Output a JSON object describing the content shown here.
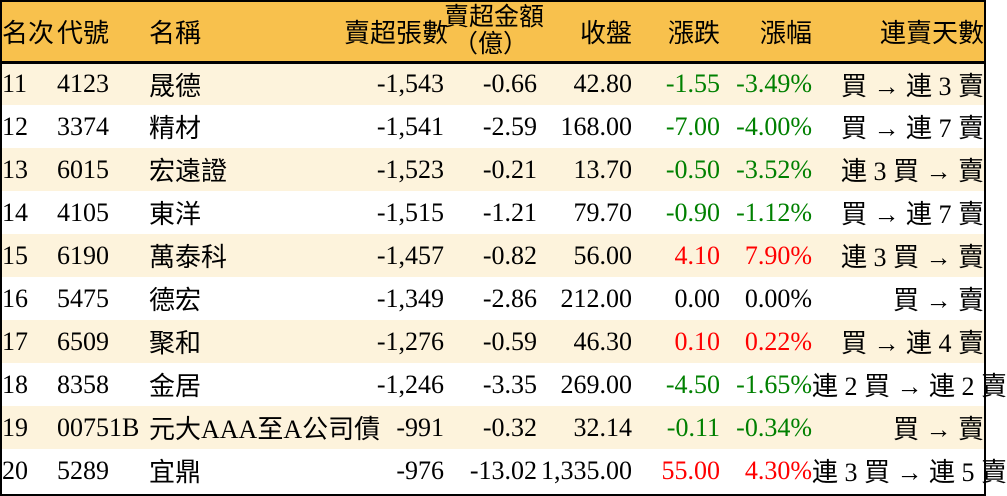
{
  "table": {
    "columns": [
      {
        "key": "rank",
        "label": "名次"
      },
      {
        "key": "code",
        "label": "代號"
      },
      {
        "key": "name",
        "label": "名稱"
      },
      {
        "key": "sell_volume",
        "label": "賣超張數"
      },
      {
        "key": "sell_amount",
        "label": "賣超金額",
        "label_line2": "（億）"
      },
      {
        "key": "close",
        "label": "收盤"
      },
      {
        "key": "change",
        "label": "漲跌"
      },
      {
        "key": "change_pct",
        "label": "漲幅"
      },
      {
        "key": "streak",
        "label": "連賣天數"
      }
    ],
    "rows": [
      {
        "rank": "11",
        "code": "4123",
        "name": "晟德",
        "sell_volume": "-1,543",
        "sell_amount": "-0.66",
        "close": "42.80",
        "change": "-1.55",
        "change_pct": "-3.49%",
        "trend": "down",
        "streak": "買 → 連 3 賣"
      },
      {
        "rank": "12",
        "code": "3374",
        "name": "精材",
        "sell_volume": "-1,541",
        "sell_amount": "-2.59",
        "close": "168.00",
        "change": "-7.00",
        "change_pct": "-4.00%",
        "trend": "down",
        "streak": "買 → 連 7 賣"
      },
      {
        "rank": "13",
        "code": "6015",
        "name": "宏遠證",
        "sell_volume": "-1,523",
        "sell_amount": "-0.21",
        "close": "13.70",
        "change": "-0.50",
        "change_pct": "-3.52%",
        "trend": "down",
        "streak": "連 3 買 → 賣"
      },
      {
        "rank": "14",
        "code": "4105",
        "name": "東洋",
        "sell_volume": "-1,515",
        "sell_amount": "-1.21",
        "close": "79.70",
        "change": "-0.90",
        "change_pct": "-1.12%",
        "trend": "down",
        "streak": "買 → 連 7 賣"
      },
      {
        "rank": "15",
        "code": "6190",
        "name": "萬泰科",
        "sell_volume": "-1,457",
        "sell_amount": "-0.82",
        "close": "56.00",
        "change": "4.10",
        "change_pct": "7.90%",
        "trend": "up",
        "streak": "連 3 買 → 賣"
      },
      {
        "rank": "16",
        "code": "5475",
        "name": "德宏",
        "sell_volume": "-1,349",
        "sell_amount": "-2.86",
        "close": "212.00",
        "change": "0.00",
        "change_pct": "0.00%",
        "trend": "flat",
        "streak": "買 → 賣"
      },
      {
        "rank": "17",
        "code": "6509",
        "name": "聚和",
        "sell_volume": "-1,276",
        "sell_amount": "-0.59",
        "close": "46.30",
        "change": "0.10",
        "change_pct": "0.22%",
        "trend": "up",
        "streak": "買 → 連 4 賣"
      },
      {
        "rank": "18",
        "code": "8358",
        "name": "金居",
        "sell_volume": "-1,246",
        "sell_amount": "-3.35",
        "close": "269.00",
        "change": "-4.50",
        "change_pct": "-1.65%",
        "trend": "down",
        "streak": "連 2 買 → 連 2 賣"
      },
      {
        "rank": "19",
        "code": "00751B",
        "name": "元大AAA至A公司債",
        "sell_volume": "-991",
        "sell_amount": "-0.32",
        "close": "32.14",
        "change": "-0.11",
        "change_pct": "-0.34%",
        "trend": "down",
        "streak": "買 → 賣"
      },
      {
        "rank": "20",
        "code": "5289",
        "name": "宜鼎",
        "sell_volume": "-976",
        "sell_amount": "-13.02",
        "close": "1,335.00",
        "change": "55.00",
        "change_pct": "4.30%",
        "trend": "up",
        "streak": "連 3 買 → 連 5 賣"
      }
    ],
    "colors": {
      "header_bg": "#F8C14D",
      "row_alt_bg": "#FDF3DC",
      "up_text": "#FF0000",
      "down_text": "#008000",
      "flat_text": "#000000",
      "border": "#000000"
    }
  }
}
